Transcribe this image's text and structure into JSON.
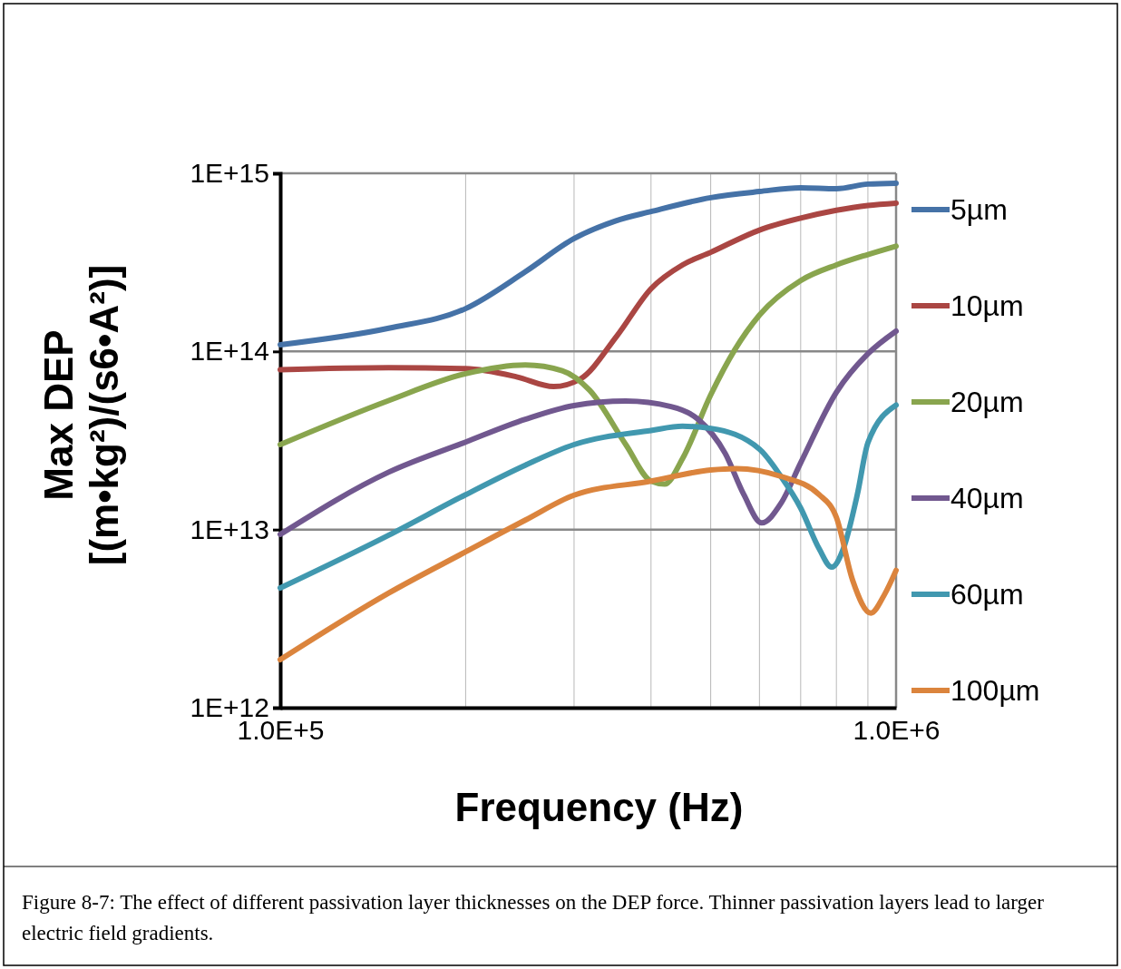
{
  "chart_data": {
    "type": "line",
    "xlabel": "Frequency (Hz)",
    "ylabel": "Max DEP\n[(m•kg²)/(s6•A²)]",
    "log": "xy",
    "grid": true,
    "legend": "right",
    "marker": "none",
    "line_style": "solid",
    "xlim": [
      100000,
      1000000
    ],
    "ylim": [
      1000000000000.0,
      1000000000000000.0
    ],
    "xticks": [
      {
        "value": 100000,
        "label": "1.0E+5"
      },
      {
        "value": 200000,
        "label": null
      },
      {
        "value": 300000,
        "label": null
      },
      {
        "value": 400000,
        "label": null
      },
      {
        "value": 500000,
        "label": null
      },
      {
        "value": 600000,
        "label": null
      },
      {
        "value": 700000,
        "label": null
      },
      {
        "value": 800000,
        "label": null
      },
      {
        "value": 900000,
        "label": null
      },
      {
        "value": 1000000,
        "label": "1.0E+6"
      }
    ],
    "yticks": [
      {
        "value": 1000000000000.0,
        "label": "1E+12"
      },
      {
        "value": 10000000000000.0,
        "label": "1E+13"
      },
      {
        "value": 100000000000000.0,
        "label": "1E+14"
      },
      {
        "value": 1000000000000000.0,
        "label": "1E+15"
      }
    ],
    "annotations": [
      "Figure 8-7: The effect of different passivation layer thicknesses on the DEP force. Thinner passivation layers lead to larger electric field gradients."
    ],
    "series": [
      {
        "name": "5µm",
        "color": "#4572a7",
        "x": [
          100000,
          150000,
          200000,
          250000,
          300000,
          350000,
          400000,
          500000,
          600000,
          700000,
          800000,
          900000,
          1000000
        ],
        "values": [
          109000000000000.0,
          135000000000000.0,
          174000000000000.0,
          280000000000000.0,
          430000000000000.0,
          540000000000000.0,
          610000000000000.0,
          730000000000000.0,
          790000000000000.0,
          830000000000000.0,
          820000000000000.0,
          870000000000000.0,
          880000000000000.0
        ]
      },
      {
        "name": "10µm",
        "color": "#aa4643",
        "x": [
          100000,
          150000,
          200000,
          242000,
          278000,
          307000,
          352000,
          400000,
          450000,
          500000,
          600000,
          700000,
          800000,
          900000,
          1000000
        ],
        "values": [
          79000000000000.0,
          81000000000000.0,
          80000000000000.0,
          72000000000000.0,
          63500000000000.0,
          70000000000000.0,
          122000000000000.0,
          225000000000000.0,
          306000000000000.0,
          360000000000000.0,
          480000000000000.0,
          560000000000000.0,
          620000000000000.0,
          660000000000000.0,
          680000000000000.0
        ]
      },
      {
        "name": "20µm",
        "color": "#89a54e",
        "x": [
          100000,
          150000,
          200000,
          250000,
          287000,
          318000,
          364000,
          400000,
          421000,
          450000,
          500000,
          547000,
          600000,
          700000,
          800000,
          900000,
          1000000
        ],
        "values": [
          30000000000000.0,
          53000000000000.0,
          75000000000000.0,
          84000000000000.0,
          78000000000000.0,
          60500000000000.0,
          30000000000000.0,
          18700000000000.0,
          18000000000000.0,
          25000000000000.0,
          57000000000000.0,
          102000000000000.0,
          160000000000000.0,
          250000000000000.0,
          306000000000000.0,
          350000000000000.0,
          390000000000000.0
        ]
      },
      {
        "name": "40µm",
        "color": "#71588f",
        "x": [
          100000,
          150000,
          200000,
          250000,
          300000,
          364000,
          431000,
          477000,
          528000,
          566000,
          605000,
          650000,
          700000,
          800000,
          900000,
          1000000
        ],
        "values": [
          9400000000000.0,
          21000000000000.0,
          31000000000000.0,
          41600000000000.0,
          49700000000000.0,
          52600000000000.0,
          49000000000000.0,
          41600000000000.0,
          26700000000000.0,
          15700000000000.0,
          10900000000000.0,
          14000000000000.0,
          23700000000000.0,
          59000000000000.0,
          97000000000000.0,
          130000000000000.0
        ]
      },
      {
        "name": "60µm",
        "color": "#4198af",
        "x": [
          100000,
          150000,
          200000,
          250000,
          300000,
          400000,
          450000,
          500000,
          600000,
          650000,
          700000,
          750000,
          786000,
          821000,
          865000,
          900000,
          1000000
        ],
        "values": [
          4700000000000.0,
          9300000000000.0,
          15700000000000.0,
          23000000000000.0,
          30000000000000.0,
          36000000000000.0,
          38000000000000.0,
          37000000000000.0,
          28300000000000.0,
          19900000000000.0,
          13200000000000.0,
          7800000000000.0,
          6150000000000.0,
          7800000000000.0,
          15700000000000.0,
          30700000000000.0,
          50000000000000.0
        ]
      },
      {
        "name": "100µm",
        "color": "#db843d",
        "x": [
          100000,
          150000,
          200000,
          250000,
          300000,
          400000,
          500000,
          550000,
          650000,
          750000,
          800000,
          850000,
          910000,
          957000,
          1000000
        ],
        "values": [
          1860000000000.0,
          4400000000000.0,
          7500000000000.0,
          11300000000000.0,
          15600000000000.0,
          18700000000000.0,
          21600000000000.0,
          22000000000000.0,
          19900000000000.0,
          15700000000000.0,
          11700000000000.0,
          5200000000000.0,
          3400000000000.0,
          4300000000000.0,
          5900000000000.0
        ]
      }
    ]
  }
}
